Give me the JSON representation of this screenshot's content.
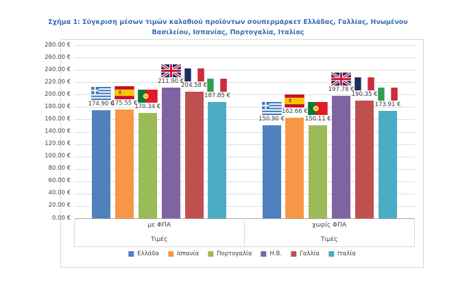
{
  "chart_data": {
    "type": "bar",
    "title": "Σχήμα 1: Σύγκριση μέσων τιμών καλαθιού προϊόντων σουπερμάρκετ Ελλάδας, Γαλλίας, Ηνωμένου Βασιλείου, Ισπανίας, Πορτογαλία, Ιταλίας",
    "title_color": "#3A6BB5",
    "unit": "EUR",
    "grid": true,
    "legend_position": "bottom",
    "y_axis": {
      "min": 0,
      "max": 280,
      "step": 20,
      "tick_labels": [
        "0.00 €",
        "20.00 €",
        "40.00 €",
        "60.00 €",
        "80.00 €",
        "100.00 €",
        "120.00 €",
        "140.00 €",
        "160.00 €",
        "180.00 €",
        "200.00 €",
        "220.00 €",
        "240.00 €",
        "260.00 €",
        "280.00 €"
      ]
    },
    "x_axis": {
      "groups": [
        {
          "label": "με ΦΠΑ",
          "sublabel": "Τιμές"
        },
        {
          "label": "χωρίς ΦΠΑ",
          "sublabel": "Τιμές"
        }
      ]
    },
    "legend_entries": [
      "Ελλάδα",
      "Ισπανία",
      "Πορτογαλία",
      "Η.Β.",
      "Γαλλία",
      "Ιταλία"
    ],
    "series": [
      {
        "name": "Ελλάδα",
        "flag": "gr",
        "color": "#4F81BD",
        "values": [
          174.9,
          150.9
        ],
        "labels": [
          "174.90 €",
          "150.90 €"
        ]
      },
      {
        "name": "Ισπανία",
        "flag": "es",
        "color": "#F79646",
        "values": [
          175.55,
          162.66
        ],
        "labels": [
          "175.55 €",
          "162.66 €"
        ]
      },
      {
        "name": "Πορτογαλία",
        "flag": "pt",
        "color": "#9BBB59",
        "values": [
          170.34,
          150.11
        ],
        "labels": [
          "170.34 €",
          "150.11 €"
        ]
      },
      {
        "name": "Η.Β.",
        "flag": "uk",
        "color": "#8064A2",
        "values": [
          211.9,
          197.78
        ],
        "labels": [
          "211.90 €",
          "197.78 €"
        ]
      },
      {
        "name": "Γαλλία",
        "flag": "fr",
        "color": "#C0504D",
        "values": [
          204.58,
          190.35
        ],
        "labels": [
          "204.58 €",
          "190.35 €"
        ]
      },
      {
        "name": "Ιταλία",
        "flag": "it",
        "color": "#4BACC6",
        "values": [
          187.85,
          173.91
        ],
        "labels": [
          "187.85 €",
          "173.91 €"
        ]
      }
    ]
  }
}
